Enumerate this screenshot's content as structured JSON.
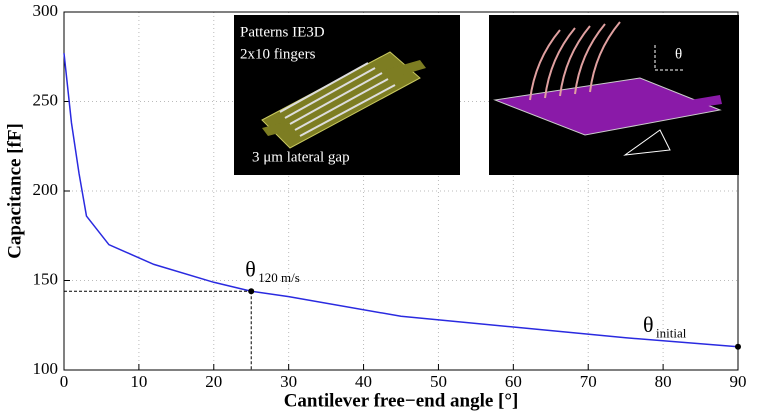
{
  "chart_data": {
    "type": "line",
    "x_label": "Cantilever free−end angle [°]",
    "y_label": "Capacitance [fF]",
    "x": [
      0,
      1,
      2,
      3,
      6,
      12,
      20,
      25,
      30,
      45,
      60,
      75,
      90
    ],
    "values": [
      277,
      238,
      210,
      186,
      170,
      159,
      149,
      144,
      141,
      130,
      124,
      118,
      113
    ],
    "color": "#2a2ae0",
    "xlim": [
      0,
      90
    ],
    "xticks": [
      0,
      10,
      20,
      30,
      40,
      50,
      60,
      70,
      80,
      90
    ],
    "ylim": [
      100,
      300
    ],
    "yticks": [
      100,
      150,
      200,
      250,
      300
    ],
    "grid": true,
    "annotations": [
      {
        "text": "θ",
        "subscript": "120 m/s",
        "x": 25,
        "y": 144
      },
      {
        "text": "θ",
        "subscript": "initial",
        "x": 90,
        "y": 113
      }
    ],
    "insets": [
      {
        "texts": [
          "Patterns IE3D",
          "2x10 fingers",
          "3 μm lateral gap"
        ]
      },
      {
        "texts": [
          "θ"
        ]
      }
    ]
  }
}
